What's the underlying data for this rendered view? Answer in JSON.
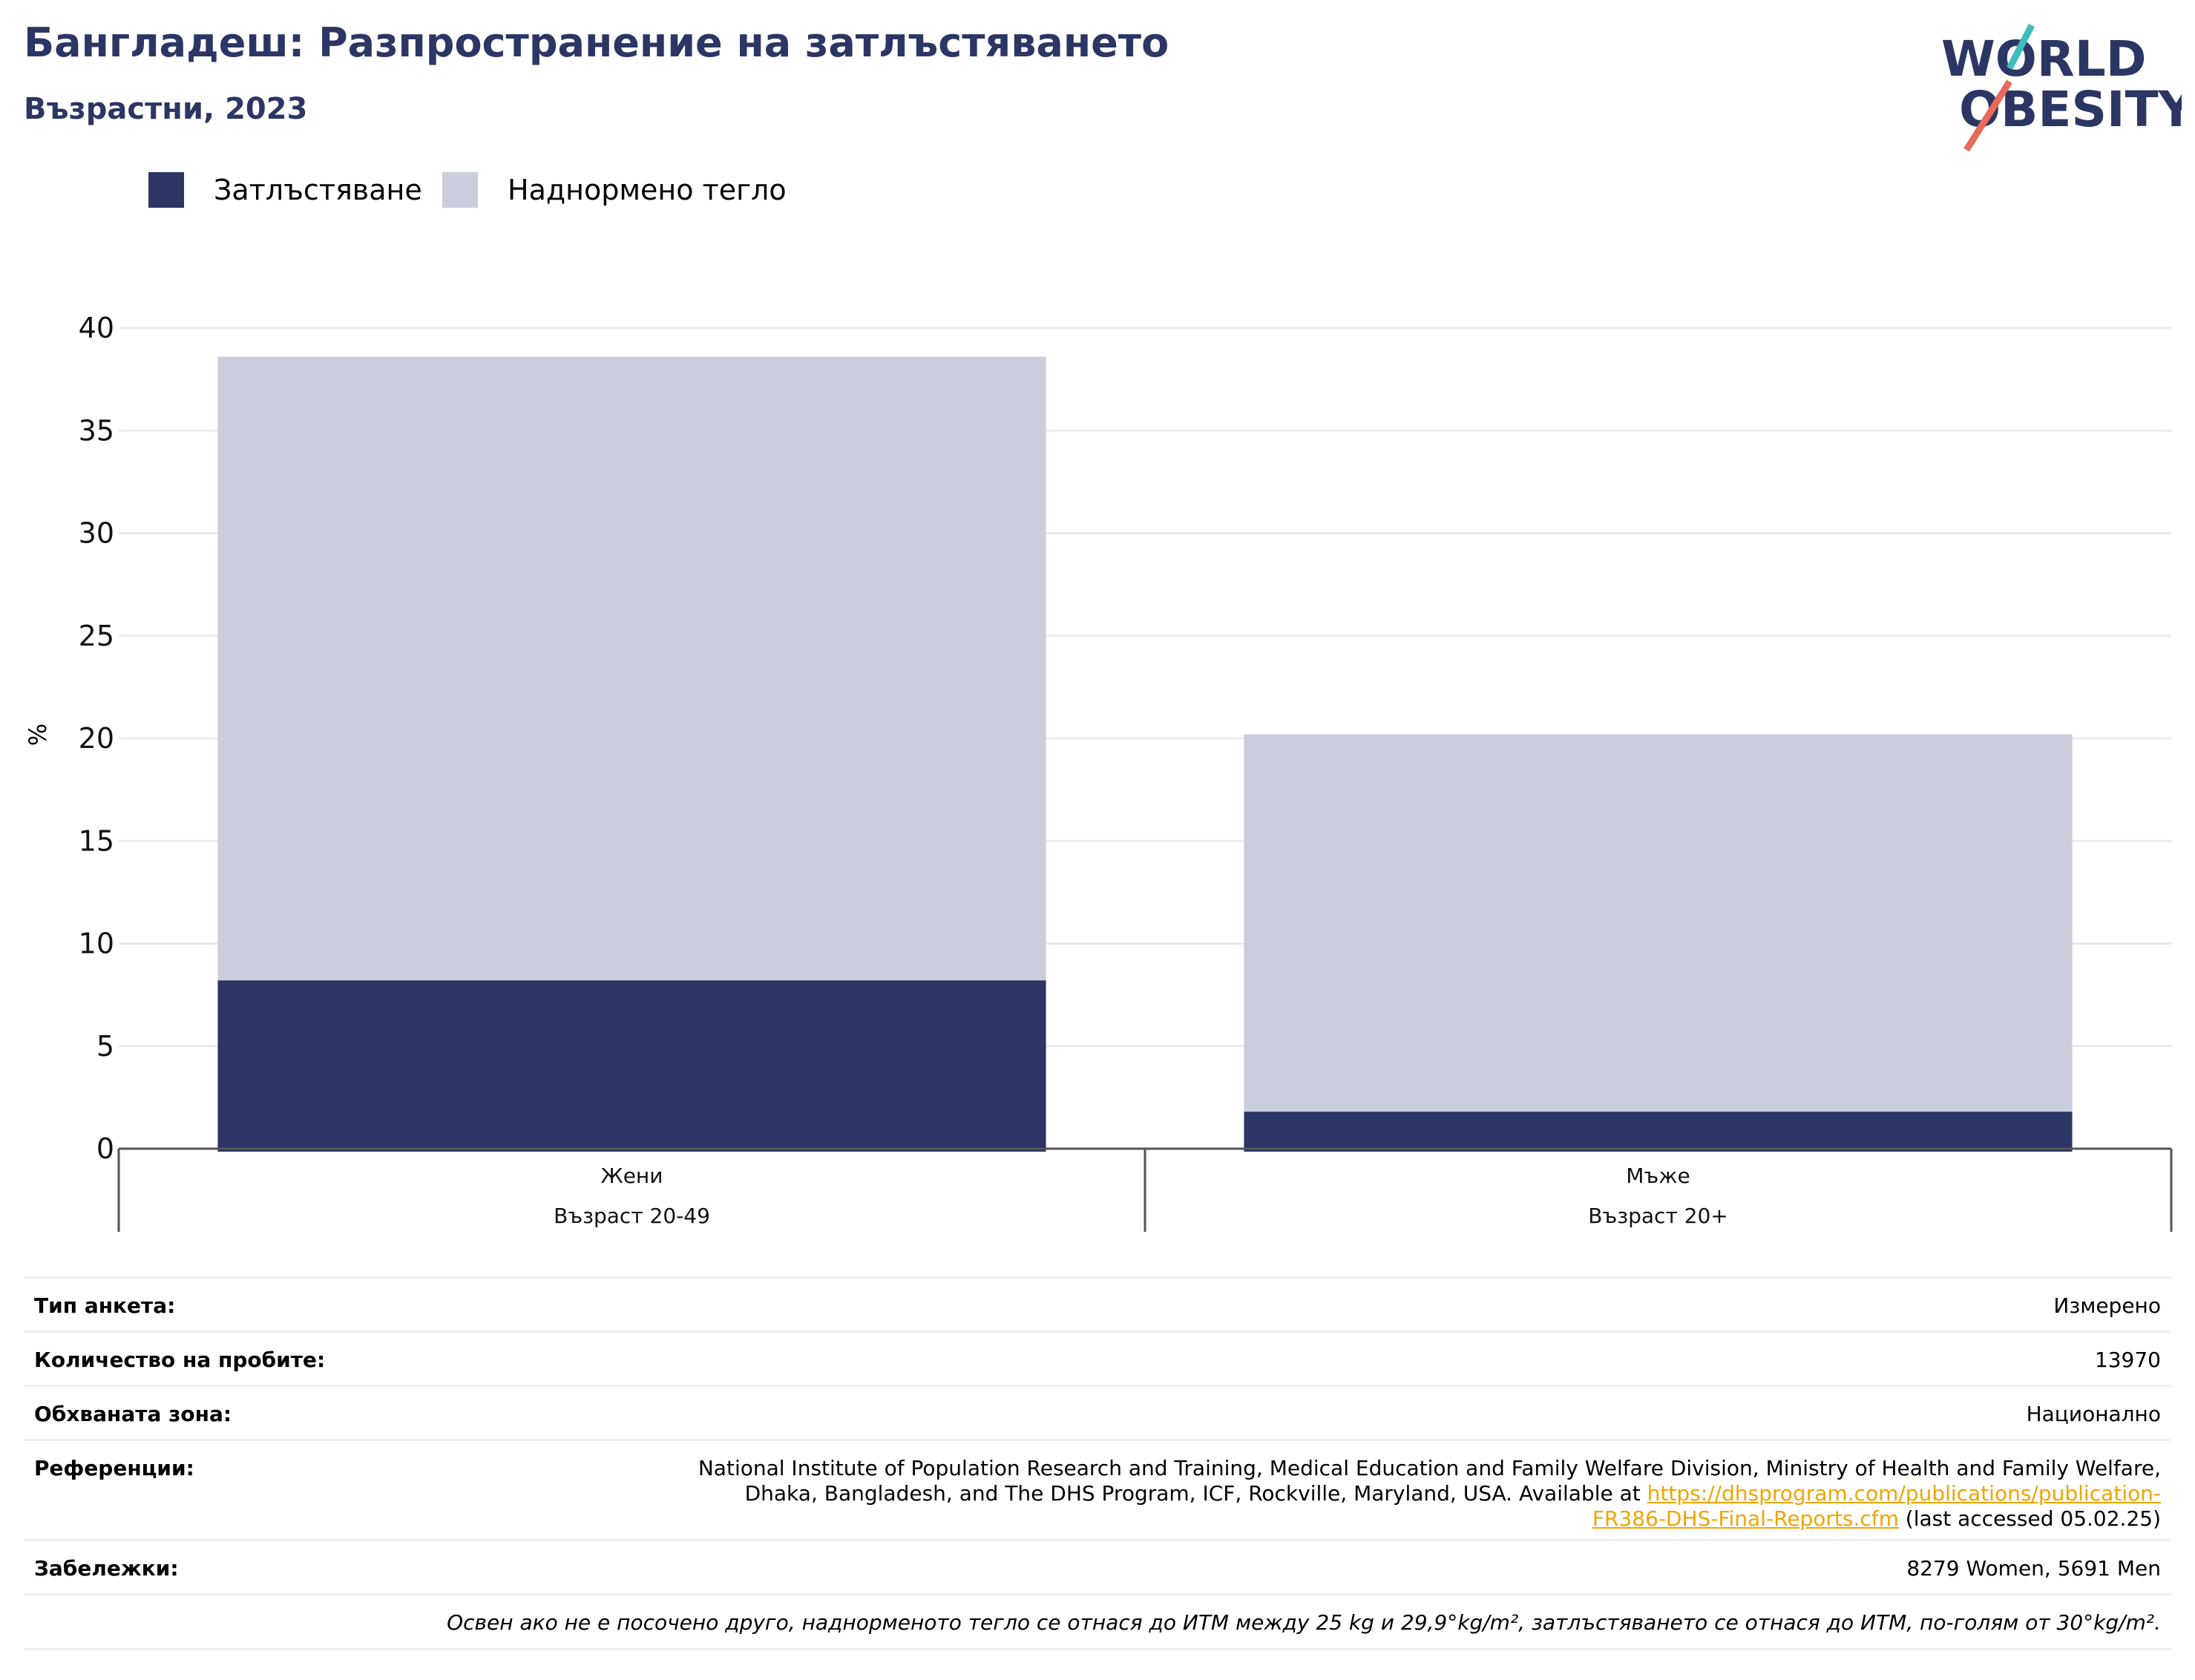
{
  "header": {
    "title": "Бангладеш: Разпространение на затлъстяването",
    "subtitle": "Възрастни, 2023",
    "logo_line1": "WORLD",
    "logo_line2": "OBESITY"
  },
  "colors": {
    "obesity": "#2b3664",
    "overweight": "#cacddb",
    "title": "#2b3664",
    "link": "#f0a500"
  },
  "legend": [
    {
      "label": "Затлъстяване",
      "color": "#2b3664"
    },
    {
      "label": "Наднормено тегло",
      "color": "#cacddb"
    }
  ],
  "chart_data": {
    "type": "bar",
    "stacked": "overlay",
    "ylabel": "%",
    "ylim": [
      0,
      40
    ],
    "yticks": [
      0,
      5,
      10,
      15,
      20,
      25,
      30,
      35,
      40
    ],
    "grid": true,
    "legend_position": "top-left",
    "categories": [
      {
        "label": "Жени",
        "sublabel": "Възраст 20-49"
      },
      {
        "label": "Мъже",
        "sublabel": "Възраст 20+"
      }
    ],
    "series": [
      {
        "name": "Наднормено тегло",
        "values": [
          38.6,
          20.2
        ]
      },
      {
        "name": "Затлъстяване",
        "values": [
          8.2,
          1.8
        ]
      }
    ]
  },
  "info": {
    "survey_type_label": "Тип анкета:",
    "survey_type_value": "Измерено",
    "sample_size_label": "Количество на пробите:",
    "sample_size_value": "13970",
    "area_label": "Обхваната зона:",
    "area_value": "Национално",
    "refs_label": "Референции:",
    "refs_line1": "National Institute of Population Research and Training, Medical Education and Family Welfare Division, Ministry of Health and Family Welfare,",
    "refs_line2_pre": "Dhaka, Bangladesh, and The DHS Program, ICF, Rockville, Maryland, USA. Available at ",
    "refs_link_a": "https://dhsprogram.com/publications/publication-",
    "refs_link_b": "FR386-DHS-Final-Reports.cfm",
    "refs_post": " (last accessed 05.02.25)",
    "notes_label": "Забележки:",
    "notes_value": "8279 Women, 5691 Men",
    "footnote": "Освен ако не е посочено друго, наднорменото тегло се отнася до ИТМ между 25 kg и 29,9°kg/m², затлъстяването се отнася до ИТМ, по-голям от 30°kg/m²."
  }
}
